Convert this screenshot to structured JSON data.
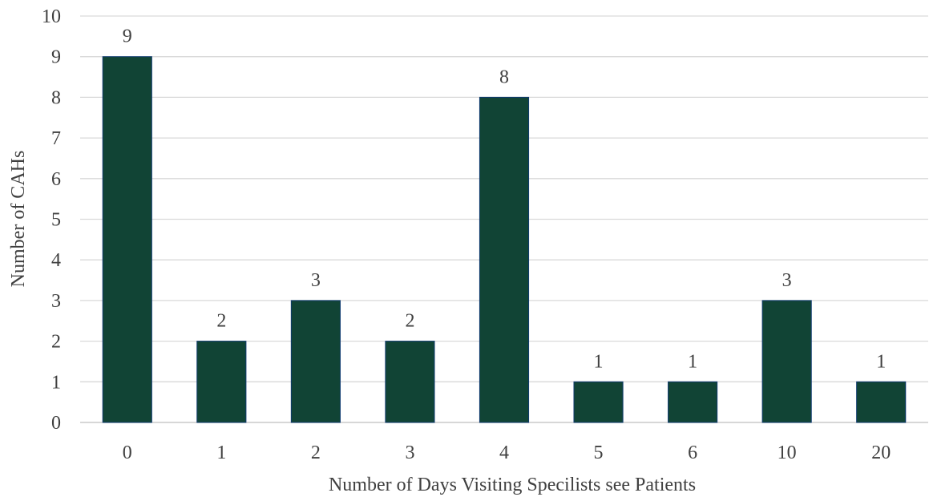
{
  "chart_data": {
    "type": "bar",
    "title": "",
    "xlabel": "Number of Days Visiting Specilists see Patients",
    "ylabel": "Number of CAHs",
    "categories": [
      "0",
      "1",
      "2",
      "3",
      "4",
      "5",
      "6",
      "10",
      "20"
    ],
    "values": [
      9,
      2,
      3,
      2,
      8,
      1,
      1,
      3,
      1
    ],
    "ylim": [
      0,
      10
    ],
    "yticks": [
      0,
      1,
      2,
      3,
      4,
      5,
      6,
      7,
      8,
      9,
      10
    ],
    "ytick_labels": [
      "0",
      "1",
      "2",
      "3",
      "4",
      "5",
      "6",
      "7",
      "8",
      "9",
      "10"
    ],
    "data_labels": true,
    "grid": true,
    "legend": "none",
    "colors": {
      "bar": "#114435",
      "bar_edge": "#0e3a6e"
    }
  }
}
